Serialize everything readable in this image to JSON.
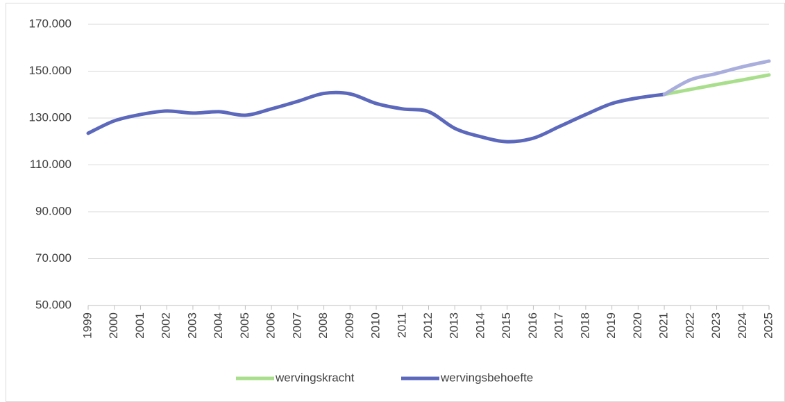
{
  "chart_data": {
    "type": "line",
    "categories": [
      "1999",
      "2000",
      "2001",
      "2002",
      "2003",
      "2004",
      "2005",
      "2006",
      "2007",
      "2008",
      "2009",
      "2010",
      "2011",
      "2012",
      "2013",
      "2014",
      "2015",
      "2016",
      "2017",
      "2018",
      "2019",
      "2020",
      "2021",
      "2022",
      "2023",
      "2024",
      "2025"
    ],
    "series": [
      {
        "name": "wervingskracht",
        "color": "#a9df8c",
        "values": [
          null,
          null,
          null,
          null,
          null,
          null,
          null,
          null,
          null,
          null,
          null,
          null,
          null,
          null,
          null,
          null,
          null,
          null,
          null,
          null,
          null,
          null,
          140100,
          142200,
          144300,
          146300,
          148400
        ]
      },
      {
        "name": "wervingsbehoefte",
        "color": "#5b68bb",
        "forecast_color": "#a9aedc",
        "forecast_from": "2021",
        "values": [
          123500,
          128800,
          131500,
          133000,
          132100,
          132700,
          131200,
          133900,
          137100,
          140500,
          140300,
          136200,
          133900,
          132700,
          125600,
          122000,
          119900,
          121400,
          126400,
          131500,
          136200,
          138600,
          140100,
          146300,
          149000,
          151900,
          154300
        ]
      }
    ],
    "ylim": [
      50000,
      170000
    ],
    "yticks": [
      {
        "value": 50000,
        "label": "50.000"
      },
      {
        "value": 70000,
        "label": "70.000"
      },
      {
        "value": 90000,
        "label": "90.000"
      },
      {
        "value": 110000,
        "label": "110.000"
      },
      {
        "value": 130000,
        "label": "130.000"
      },
      {
        "value": 150000,
        "label": "150.000"
      },
      {
        "value": 170000,
        "label": "170.000"
      }
    ],
    "grid": true,
    "legend": "bottom"
  }
}
